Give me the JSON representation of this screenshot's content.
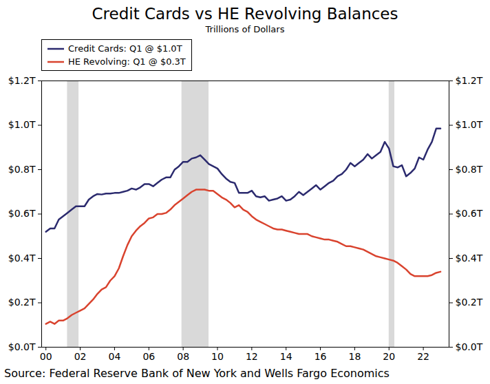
{
  "chart_data": {
    "type": "line",
    "title": "Credit Cards vs HE Revolving Balances",
    "subtitle": "Trillions of Dollars",
    "caption": "Source: Federal Reserve Bank of New York and Wells Fargo Economics",
    "x": [
      2000,
      2000.25,
      2000.5,
      2000.75,
      2001,
      2001.25,
      2001.5,
      2001.75,
      2002,
      2002.25,
      2002.5,
      2002.75,
      2003,
      2003.25,
      2003.5,
      2003.75,
      2004,
      2004.25,
      2004.5,
      2004.75,
      2005,
      2005.25,
      2005.5,
      2005.75,
      2006,
      2006.25,
      2006.5,
      2006.75,
      2007,
      2007.25,
      2007.5,
      2007.75,
      2008,
      2008.25,
      2008.5,
      2008.75,
      2009,
      2009.25,
      2009.5,
      2009.75,
      2010,
      2010.25,
      2010.5,
      2010.75,
      2011,
      2011.25,
      2011.5,
      2011.75,
      2012,
      2012.25,
      2012.5,
      2012.75,
      2013,
      2013.25,
      2013.5,
      2013.75,
      2014,
      2014.25,
      2014.5,
      2014.75,
      2015,
      2015.25,
      2015.5,
      2015.75,
      2016,
      2016.25,
      2016.5,
      2016.75,
      2017,
      2017.25,
      2017.5,
      2017.75,
      2018,
      2018.25,
      2018.5,
      2018.75,
      2019,
      2019.25,
      2019.5,
      2019.75,
      2020,
      2020.25,
      2020.5,
      2020.75,
      2021,
      2021.25,
      2021.5,
      2021.75,
      2022,
      2022.25,
      2022.5,
      2022.75,
      2023
    ],
    "series": [
      {
        "name": "Credit Cards: Q1 @ $1.0T",
        "color": "#2b2a6e",
        "line_style": "solid",
        "values": [
          0.52,
          0.535,
          0.535,
          0.575,
          0.59,
          0.605,
          0.62,
          0.635,
          0.635,
          0.635,
          0.665,
          0.68,
          0.69,
          0.688,
          0.692,
          0.692,
          0.695,
          0.695,
          0.7,
          0.705,
          0.715,
          0.71,
          0.72,
          0.735,
          0.735,
          0.725,
          0.74,
          0.755,
          0.765,
          0.765,
          0.8,
          0.815,
          0.835,
          0.835,
          0.85,
          0.855,
          0.865,
          0.845,
          0.825,
          0.815,
          0.805,
          0.78,
          0.76,
          0.745,
          0.74,
          0.695,
          0.695,
          0.695,
          0.705,
          0.68,
          0.675,
          0.68,
          0.66,
          0.665,
          0.67,
          0.68,
          0.66,
          0.665,
          0.68,
          0.7,
          0.685,
          0.7,
          0.715,
          0.73,
          0.71,
          0.725,
          0.74,
          0.75,
          0.77,
          0.78,
          0.8,
          0.83,
          0.815,
          0.83,
          0.845,
          0.87,
          0.85,
          0.865,
          0.88,
          0.925,
          0.895,
          0.815,
          0.81,
          0.82,
          0.77,
          0.785,
          0.805,
          0.855,
          0.845,
          0.89,
          0.925,
          0.985,
          0.985
        ]
      },
      {
        "name": "HE Revolving: Q1 @ $0.3T",
        "color": "#d9432e",
        "line_style": "solid",
        "values": [
          0.105,
          0.115,
          0.105,
          0.12,
          0.12,
          0.13,
          0.145,
          0.155,
          0.165,
          0.175,
          0.195,
          0.215,
          0.24,
          0.26,
          0.27,
          0.3,
          0.32,
          0.355,
          0.41,
          0.46,
          0.5,
          0.525,
          0.545,
          0.56,
          0.58,
          0.585,
          0.6,
          0.6,
          0.605,
          0.62,
          0.64,
          0.655,
          0.67,
          0.685,
          0.7,
          0.71,
          0.71,
          0.71,
          0.705,
          0.705,
          0.69,
          0.675,
          0.665,
          0.65,
          0.63,
          0.64,
          0.62,
          0.61,
          0.59,
          0.575,
          0.565,
          0.555,
          0.545,
          0.535,
          0.53,
          0.53,
          0.525,
          0.52,
          0.515,
          0.51,
          0.51,
          0.51,
          0.5,
          0.495,
          0.49,
          0.485,
          0.485,
          0.48,
          0.475,
          0.465,
          0.455,
          0.455,
          0.45,
          0.445,
          0.44,
          0.43,
          0.42,
          0.41,
          0.405,
          0.4,
          0.395,
          0.39,
          0.38,
          0.365,
          0.35,
          0.33,
          0.32,
          0.32,
          0.32,
          0.32,
          0.325,
          0.335,
          0.34
        ]
      }
    ],
    "recessions": [
      [
        2001.25,
        2001.92
      ],
      [
        2007.92,
        2009.5
      ],
      [
        2020.0,
        2020.33
      ]
    ],
    "xlim": [
      1999.75,
      2023.5
    ],
    "xticks": [
      {
        "value": 2000,
        "label": "00"
      },
      {
        "value": 2002,
        "label": "02"
      },
      {
        "value": 2004,
        "label": "04"
      },
      {
        "value": 2006,
        "label": "06"
      },
      {
        "value": 2008,
        "label": "08"
      },
      {
        "value": 2010,
        "label": "10"
      },
      {
        "value": 2012,
        "label": "12"
      },
      {
        "value": 2014,
        "label": "14"
      },
      {
        "value": 2016,
        "label": "16"
      },
      {
        "value": 2018,
        "label": "18"
      },
      {
        "value": 2020,
        "label": "20"
      },
      {
        "value": 2022,
        "label": "22"
      }
    ],
    "ylim": [
      0,
      1.2
    ],
    "yticks": [
      {
        "value": 0,
        "label": "$0.0T"
      },
      {
        "value": 0.2,
        "label": "$0.2T"
      },
      {
        "value": 0.4,
        "label": "$0.4T"
      },
      {
        "value": 0.6,
        "label": "$0.6T"
      },
      {
        "value": 0.8,
        "label": "$0.8T"
      },
      {
        "value": 1.0,
        "label": "$1.0T"
      },
      {
        "value": 1.2,
        "label": "$1.2T"
      }
    ],
    "grid": false
  }
}
